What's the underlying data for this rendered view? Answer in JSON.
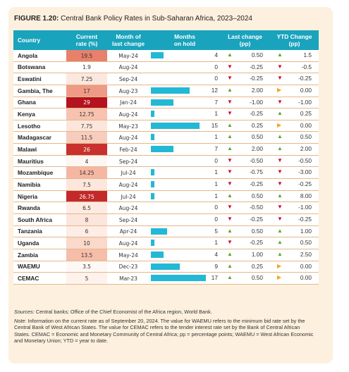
{
  "figure": {
    "label": "FIGURE 1.20:",
    "title": "Central Bank Policy Rates in Sub-Saharan Africa, 2023–2024"
  },
  "colors": {
    "header": "#1aa3bd",
    "panel": "#fdf0de",
    "bar": "#23b8d6",
    "up": "#5aa52d",
    "down": "#c8102e",
    "flat": "#f2a71b"
  },
  "table": {
    "columns": [
      "Country",
      "Current rate (%)",
      "Month of last change",
      "Months on hold",
      "Last change (pp)",
      "YTD Change (pp)"
    ],
    "header_lines": [
      [
        "Country"
      ],
      [
        "Current",
        "rate (%)"
      ],
      [
        "Month of",
        "last change"
      ],
      [
        "Months",
        "on hold"
      ],
      [
        "Last change",
        "(pp)"
      ],
      [
        "YTD Change",
        "(pp)"
      ]
    ],
    "rate_heatmap_scale": [
      1.9,
      29
    ],
    "months_hold_max": 17,
    "rows": [
      {
        "country": "Angola",
        "rate": "19.5",
        "month": "May-24",
        "hold": "4",
        "hold_value": 4,
        "last": "0.50",
        "last_dir": "up",
        "ytd": "1.5",
        "ytd_dir": "up"
      },
      {
        "country": "Botswana",
        "rate": "1.9",
        "month": "Aug-24",
        "hold": "0",
        "hold_value": 0,
        "last": "-0.25",
        "last_dir": "down",
        "ytd": "-0.5",
        "ytd_dir": "down"
      },
      {
        "country": "Eswatini",
        "rate": "7.25",
        "month": "Sep-24",
        "hold": "0",
        "hold_value": 0,
        "last": "-0.25",
        "last_dir": "down",
        "ytd": "-0.25",
        "ytd_dir": "down"
      },
      {
        "country": "Gambia, The",
        "rate": "17",
        "month": "Aug-23",
        "hold": "12",
        "hold_value": 12,
        "last": "2.00",
        "last_dir": "up",
        "ytd": "0.00",
        "ytd_dir": "flat"
      },
      {
        "country": "Ghana",
        "rate": "29",
        "month": "Jan-24",
        "hold": "7",
        "hold_value": 7,
        "last": "-1.00",
        "last_dir": "down",
        "ytd": "-1.00",
        "ytd_dir": "down"
      },
      {
        "country": "Kenya",
        "rate": "12.75",
        "month": "Aug-24",
        "hold": "1",
        "hold_value": 1,
        "last": "-0.25",
        "last_dir": "down",
        "ytd": "0.25",
        "ytd_dir": "up"
      },
      {
        "country": "Lesotho",
        "rate": "7.75",
        "month": "May-23",
        "hold": "15",
        "hold_value": 15,
        "last": "0.25",
        "last_dir": "up",
        "ytd": "0.00",
        "ytd_dir": "flat"
      },
      {
        "country": "Madagascar",
        "rate": "11.5",
        "month": "Aug-24",
        "hold": "1",
        "hold_value": 1,
        "last": "0.50",
        "last_dir": "up",
        "ytd": "0.50",
        "ytd_dir": "up"
      },
      {
        "country": "Malawi",
        "rate": "26",
        "month": "Feb-24",
        "hold": "7",
        "hold_value": 7,
        "last": "2.00",
        "last_dir": "up",
        "ytd": "2.00",
        "ytd_dir": "up"
      },
      {
        "country": "Mauritius",
        "rate": "4",
        "month": "Sep-24",
        "hold": "0",
        "hold_value": 0,
        "last": "-0.50",
        "last_dir": "down",
        "ytd": "-0.50",
        "ytd_dir": "down"
      },
      {
        "country": "Mozambique",
        "rate": "14.25",
        "month": "Jul-24",
        "hold": "1",
        "hold_value": 1,
        "last": "-0.75",
        "last_dir": "down",
        "ytd": "-3.00",
        "ytd_dir": "down"
      },
      {
        "country": "Namibia",
        "rate": "7.5",
        "month": "Aug-24",
        "hold": "1",
        "hold_value": 1,
        "last": "-0.25",
        "last_dir": "down",
        "ytd": "-0.25",
        "ytd_dir": "down"
      },
      {
        "country": "Nigeria",
        "rate": "26.75",
        "month": "Jul-24",
        "hold": "1",
        "hold_value": 1,
        "last": "0.50",
        "last_dir": "up",
        "ytd": "8.00",
        "ytd_dir": "up"
      },
      {
        "country": "Rwanda",
        "rate": "6.5",
        "month": "Aug-24",
        "hold": "0",
        "hold_value": 0,
        "last": "-0.50",
        "last_dir": "down",
        "ytd": "-1.00",
        "ytd_dir": "down"
      },
      {
        "country": "South Africa",
        "rate": "8",
        "month": "Sep-24",
        "hold": "0",
        "hold_value": 0,
        "last": "-0.25",
        "last_dir": "down",
        "ytd": "-0.25",
        "ytd_dir": "down"
      },
      {
        "country": "Tanzania",
        "rate": "6",
        "month": "Apr-24",
        "hold": "5",
        "hold_value": 5,
        "last": "0.50",
        "last_dir": "up",
        "ytd": "1.00",
        "ytd_dir": "up"
      },
      {
        "country": "Uganda",
        "rate": "10",
        "month": "Aug-24",
        "hold": "1",
        "hold_value": 1,
        "last": "-0.25",
        "last_dir": "down",
        "ytd": "0.50",
        "ytd_dir": "up"
      },
      {
        "country": "Zambia",
        "rate": "13.5",
        "month": "May-24",
        "hold": "4",
        "hold_value": 4,
        "last": "1.00",
        "last_dir": "up",
        "ytd": "2.50",
        "ytd_dir": "up"
      },
      {
        "country": "WAEMU",
        "rate": "3.5",
        "month": "Dec-23",
        "hold": "9",
        "hold_value": 9,
        "last": "0.25",
        "last_dir": "up",
        "ytd": "0.00",
        "ytd_dir": "flat"
      },
      {
        "country": "CEMAC",
        "rate": "5",
        "month": "Mar-23",
        "hold": "17",
        "hold_value": 17,
        "last": "0.50",
        "last_dir": "up",
        "ytd": "0.00",
        "ytd_dir": "flat"
      }
    ]
  },
  "footer": {
    "sources_label": "Sources:",
    "sources_text": " Central banks; Office of the Chief Economist of the Africa region, World Bank.",
    "note_label": "Note:",
    "note_text": " Information on the current rate as of September 20, 2024. The value for WAEMU refers to the minimum bid rate set by the Central Bank of West African States. The value for CEMAC refers to the tender interest rate set by the Bank of Central African States. CEMAC = Economic and Monetary Community of Central Africa; pp = percentage points; WAEMU = West African Economic and Monetary Union; YTD = year to date."
  }
}
